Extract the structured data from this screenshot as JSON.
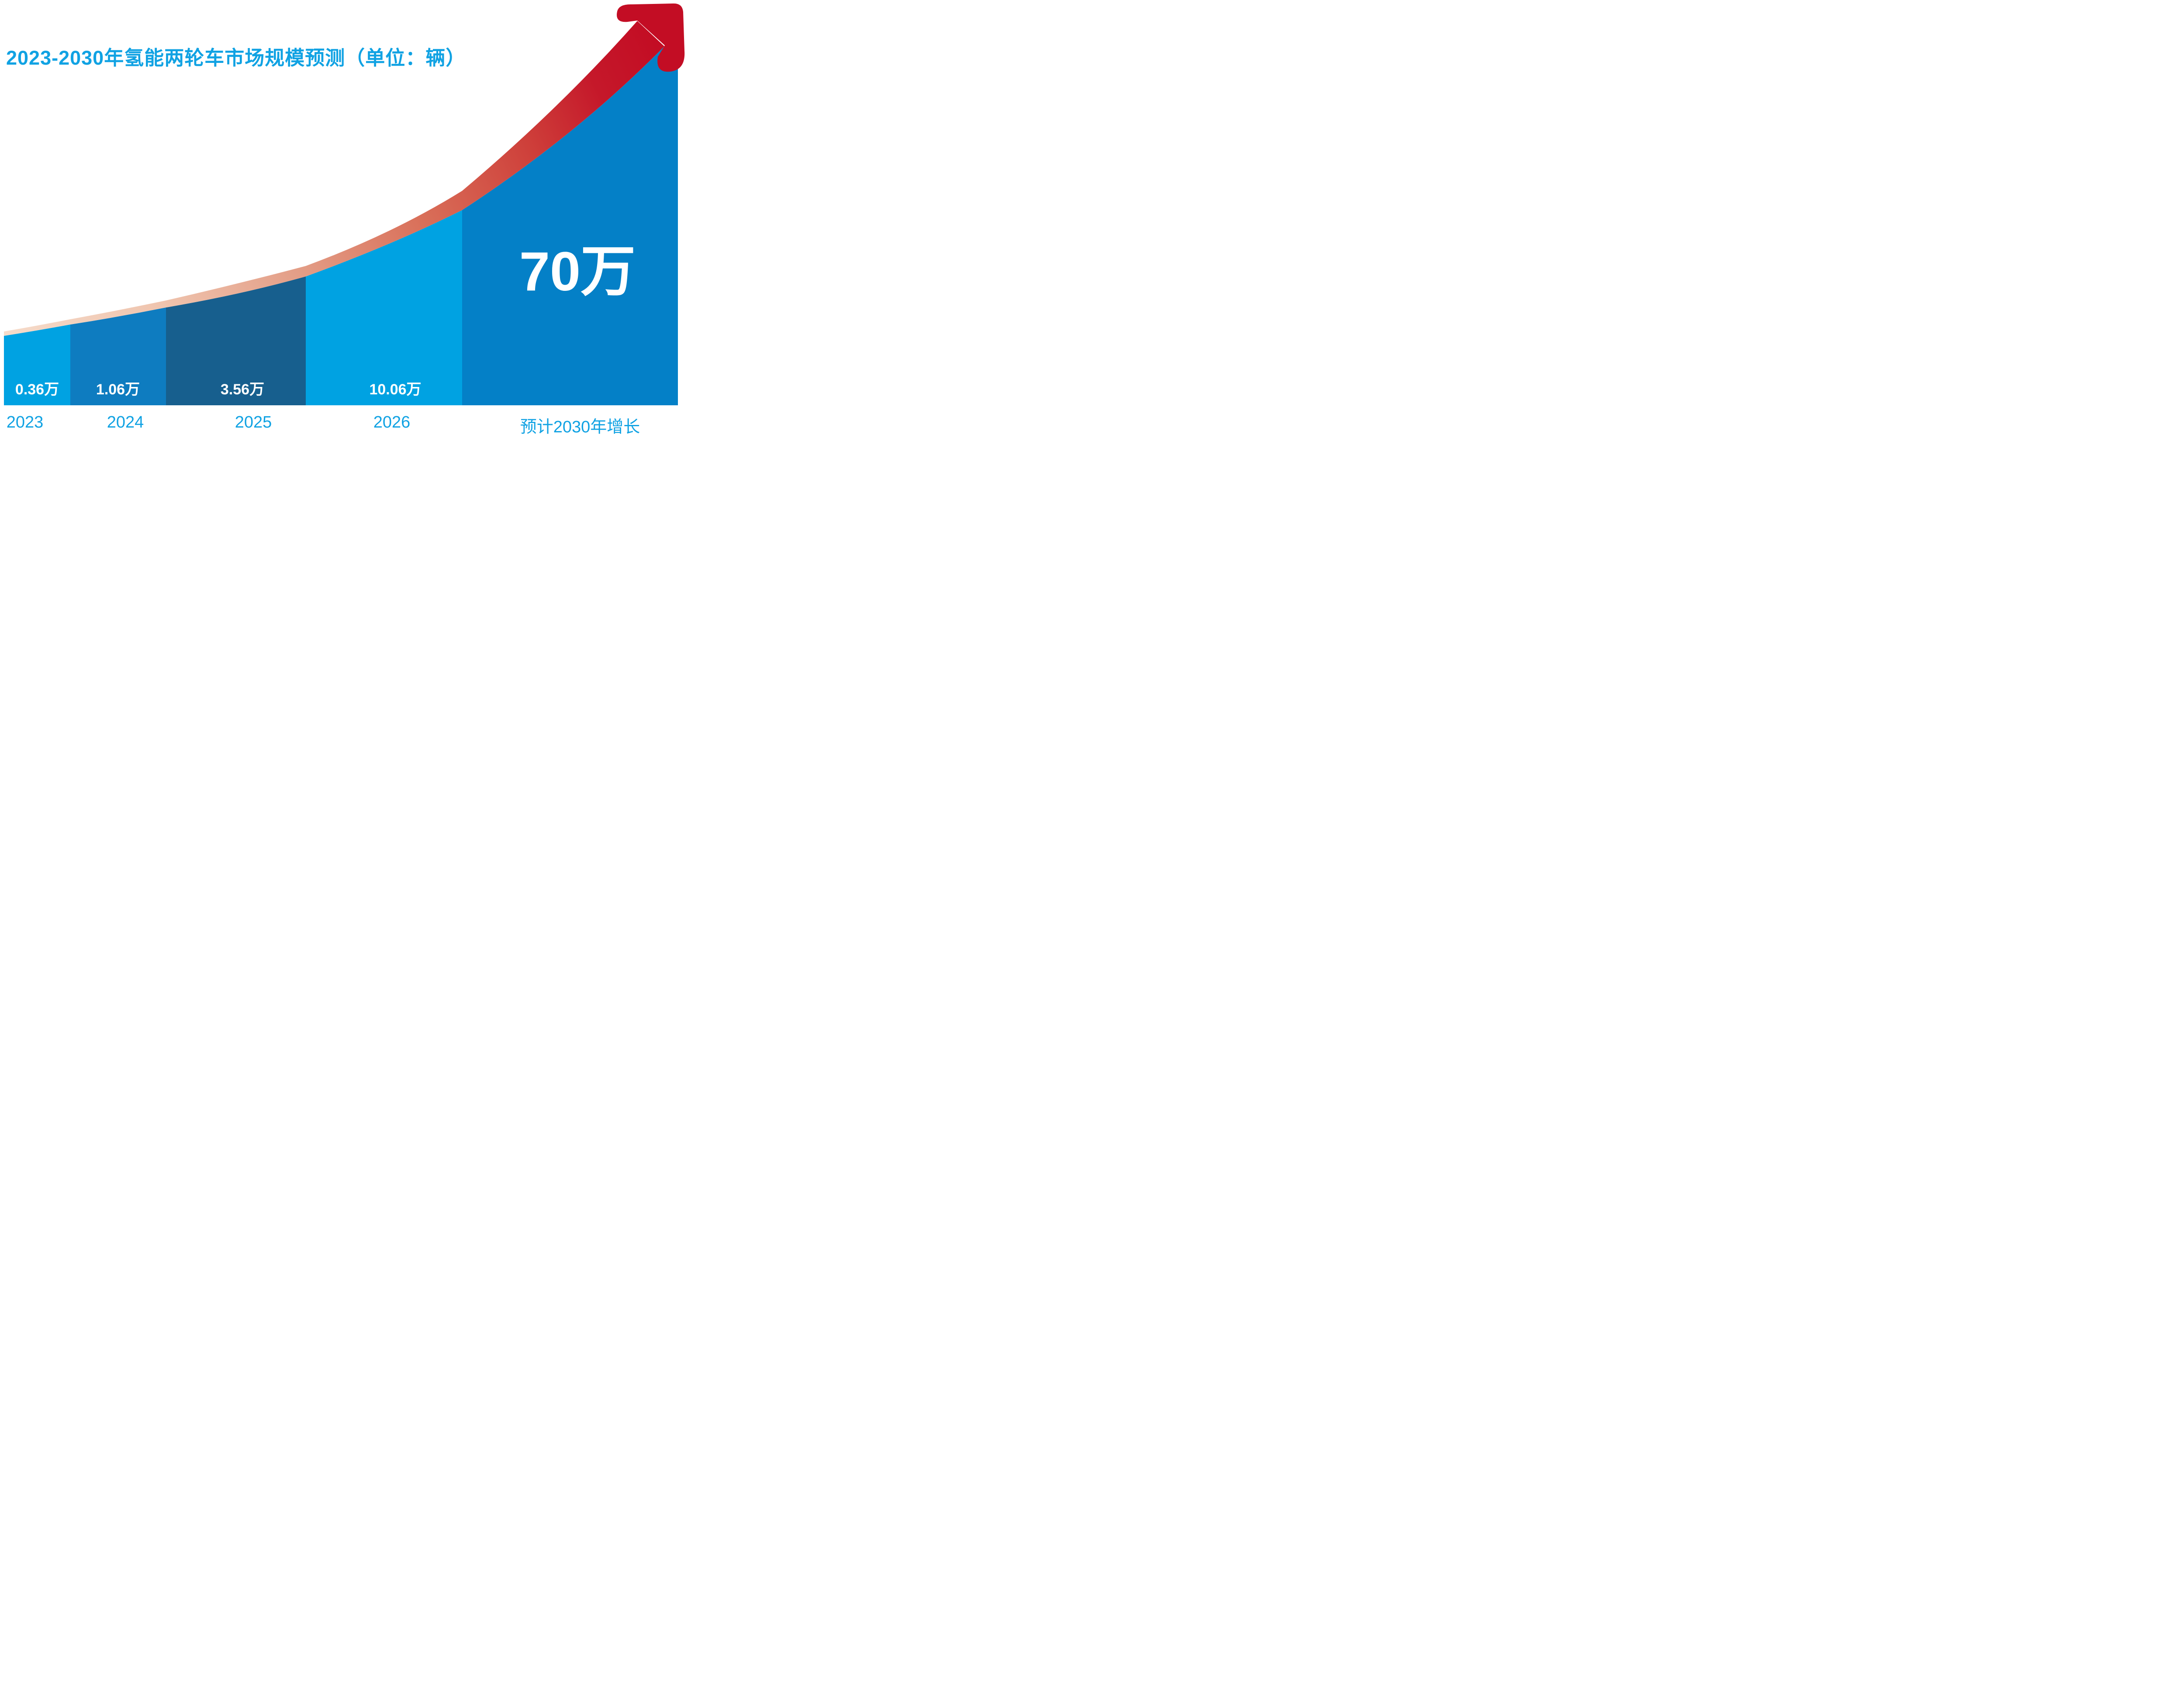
{
  "title": "2023-2030年氢能两轮车市场规模预测（单位：辆）",
  "accent_color": "#10A2E3",
  "value_label_color": "#FFFFFF",
  "chart_data": {
    "type": "bar",
    "title": "2023-2030年氢能两轮车市场规模预测（单位：辆）",
    "unit": "辆",
    "categories": [
      "2023",
      "2024",
      "2025",
      "2026",
      "预计2030年增长"
    ],
    "values": [
      3600,
      10600,
      35600,
      100600,
      700000
    ],
    "value_labels": [
      "0.36万",
      "1.06万",
      "3.56万",
      "10.06万",
      "70万"
    ],
    "bar_colors": [
      "#00A2E2",
      "#0E7CC0",
      "#175F8E",
      "#00A2E2",
      "#0480C7"
    ],
    "xlabel": "",
    "ylabel": "",
    "grid": false,
    "legend_position": "none",
    "annotations": [
      "红色上升箭头表示市场规模增长趋势"
    ],
    "arrow": {
      "deep_red": "#C30D24",
      "gradient_stops": [
        "#F6DCCB",
        "#EFC4AE",
        "#E39C85",
        "#D96F59",
        "#CE3F3A",
        "#C5182A",
        "#C30D24"
      ]
    }
  }
}
